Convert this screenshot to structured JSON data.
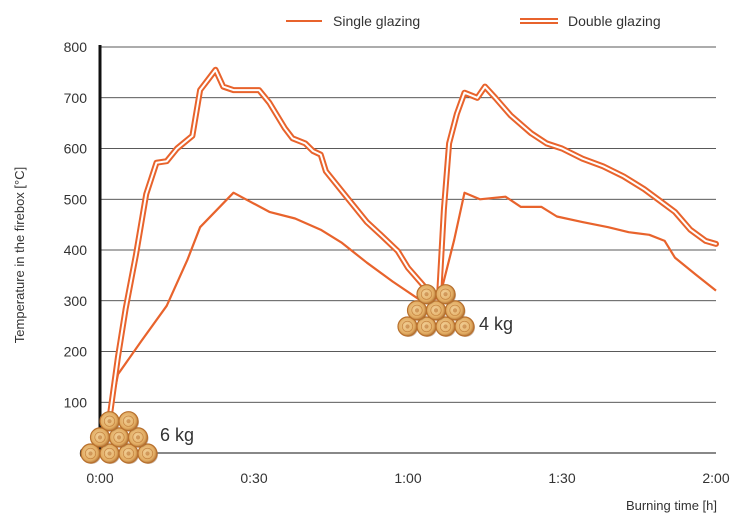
{
  "colors": {
    "series": "#e8632c",
    "grid": "#222222",
    "axis": "#111111",
    "wood_end": "#e7b777",
    "wood_ring": "#b8702d",
    "wood_shadow": "#8a5a34"
  },
  "chart_data": {
    "type": "line",
    "title": "",
    "xlabel": "Burning time [h]",
    "ylabel": "Temperature in the firebox [°C]",
    "xlim": [
      0,
      120
    ],
    "ylim": [
      0,
      800
    ],
    "x_unit": "minutes",
    "grid": "horizontal",
    "legend_position": "top-right",
    "x_ticks": [
      {
        "value": 0,
        "label": "0:00"
      },
      {
        "value": 30,
        "label": "0:30"
      },
      {
        "value": 60,
        "label": "1:00"
      },
      {
        "value": 90,
        "label": "1:30"
      },
      {
        "value": 120,
        "label": "2:00"
      }
    ],
    "y_ticks": [
      {
        "value": 0,
        "label": "0"
      },
      {
        "value": 100,
        "label": "100"
      },
      {
        "value": 200,
        "label": "200"
      },
      {
        "value": 300,
        "label": "300"
      },
      {
        "value": 400,
        "label": "400"
      },
      {
        "value": 500,
        "label": "500"
      },
      {
        "value": 600,
        "label": "600"
      },
      {
        "value": 700,
        "label": "700"
      },
      {
        "value": 800,
        "label": "800"
      }
    ],
    "series": [
      {
        "name": "Single glazing",
        "style": "single",
        "points": [
          [
            0,
            0
          ],
          [
            2,
            80
          ],
          [
            3.5,
            155
          ],
          [
            8,
            220
          ],
          [
            13,
            290
          ],
          [
            17,
            380
          ],
          [
            19.5,
            445
          ],
          [
            26,
            513
          ],
          [
            33,
            475
          ],
          [
            38,
            462
          ],
          [
            43,
            440
          ],
          [
            47,
            415
          ],
          [
            52,
            375
          ],
          [
            57,
            338
          ],
          [
            63,
            297
          ],
          [
            66,
            300
          ],
          [
            69,
            420
          ],
          [
            71,
            513
          ],
          [
            74,
            500
          ],
          [
            79,
            505
          ],
          [
            82,
            485
          ],
          [
            86,
            485
          ],
          [
            89,
            466
          ],
          [
            94,
            455
          ],
          [
            99,
            445
          ],
          [
            103,
            435
          ],
          [
            107,
            430
          ],
          [
            110,
            418
          ],
          [
            112,
            385
          ],
          [
            116,
            352
          ],
          [
            120,
            320
          ]
        ]
      },
      {
        "name": "Double glazing",
        "style": "double",
        "points": [
          [
            0,
            0
          ],
          [
            2,
            80
          ],
          [
            3.5,
            190
          ],
          [
            5,
            285
          ],
          [
            7,
            390
          ],
          [
            9,
            510
          ],
          [
            11,
            572
          ],
          [
            13,
            575
          ],
          [
            15,
            600
          ],
          [
            18,
            625
          ],
          [
            19.5,
            715
          ],
          [
            21,
            735
          ],
          [
            22.5,
            755
          ],
          [
            24,
            722
          ],
          [
            26,
            715
          ],
          [
            31,
            715
          ],
          [
            33,
            690
          ],
          [
            36,
            640
          ],
          [
            37.5,
            620
          ],
          [
            40,
            610
          ],
          [
            41.5,
            595
          ],
          [
            43,
            588
          ],
          [
            44,
            555
          ],
          [
            48,
            505
          ],
          [
            52,
            455
          ],
          [
            55,
            427
          ],
          [
            58,
            398
          ],
          [
            60,
            365
          ],
          [
            63,
            330
          ],
          [
            65,
            300
          ],
          [
            66,
            300
          ],
          [
            67,
            480
          ],
          [
            68,
            610
          ],
          [
            69.5,
            668
          ],
          [
            71,
            710
          ],
          [
            73.5,
            700
          ],
          [
            75,
            722
          ],
          [
            77,
            700
          ],
          [
            80,
            665
          ],
          [
            84,
            630
          ],
          [
            87,
            610
          ],
          [
            90,
            600
          ],
          [
            94,
            580
          ],
          [
            98,
            565
          ],
          [
            102,
            545
          ],
          [
            106,
            520
          ],
          [
            110,
            490
          ],
          [
            112,
            475
          ],
          [
            115,
            440
          ],
          [
            118,
            418
          ],
          [
            120,
            412
          ]
        ]
      }
    ],
    "annotations": [
      {
        "text": "6 kg",
        "x": 0,
        "y": 0,
        "icon": "firewood-stack-icon"
      },
      {
        "text": "4 kg",
        "x": 66,
        "y": 300,
        "icon": "firewood-stack-icon"
      }
    ]
  }
}
